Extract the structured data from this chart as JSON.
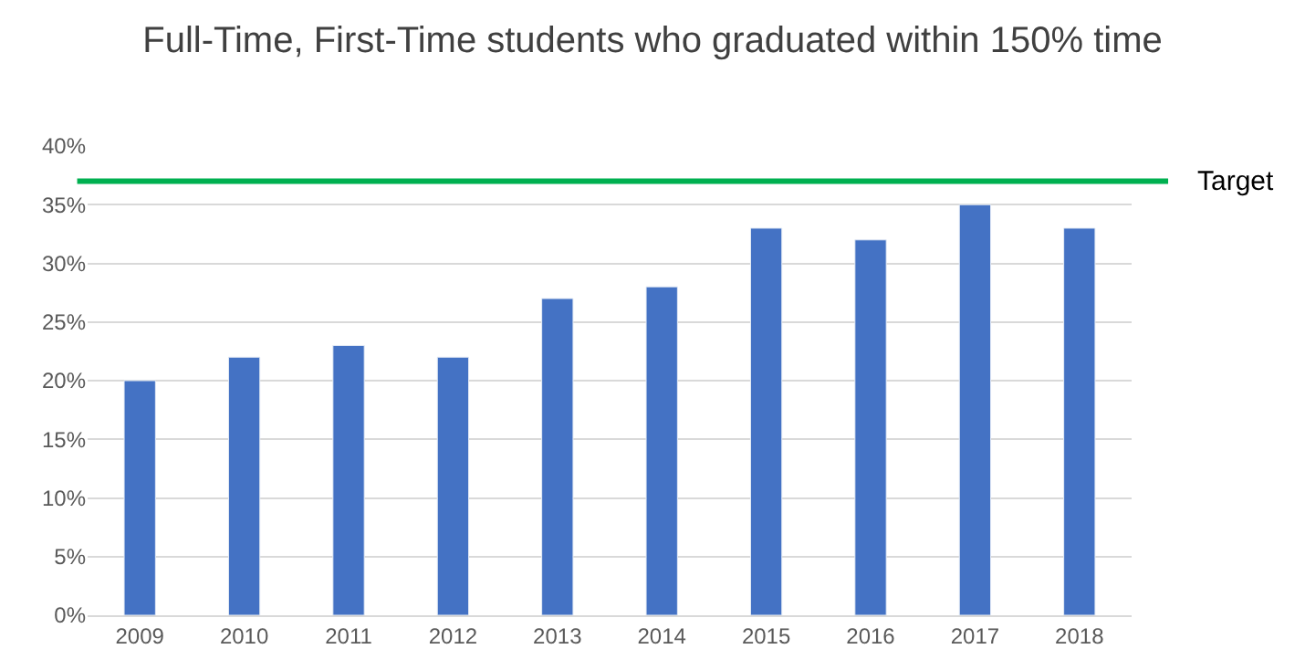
{
  "chart_data": {
    "type": "bar",
    "title": "Full-Time, First-Time students who graduated within 150% time",
    "categories": [
      "2009",
      "2010",
      "2011",
      "2012",
      "2013",
      "2014",
      "2015",
      "2016",
      "2017",
      "2018"
    ],
    "series": [
      {
        "color": "#4472c4",
        "values": [
          20,
          22,
          23,
          22,
          27,
          28,
          33,
          32,
          35,
          33
        ]
      }
    ],
    "ylim": [
      0,
      40
    ],
    "yticks": [
      {
        "value": 0,
        "label": "0%"
      },
      {
        "value": 5,
        "label": "5%"
      },
      {
        "value": 10,
        "label": "10%"
      },
      {
        "value": 15,
        "label": "15%"
      },
      {
        "value": 20,
        "label": "20%"
      },
      {
        "value": 25,
        "label": "25%"
      },
      {
        "value": 30,
        "label": "30%"
      },
      {
        "value": 35,
        "label": "35%"
      },
      {
        "value": 40,
        "label": "40%"
      }
    ],
    "grid": "y",
    "ref_lines": [
      {
        "axis": "y",
        "value": 37,
        "label": "Target",
        "color": "#00b050"
      }
    ]
  }
}
